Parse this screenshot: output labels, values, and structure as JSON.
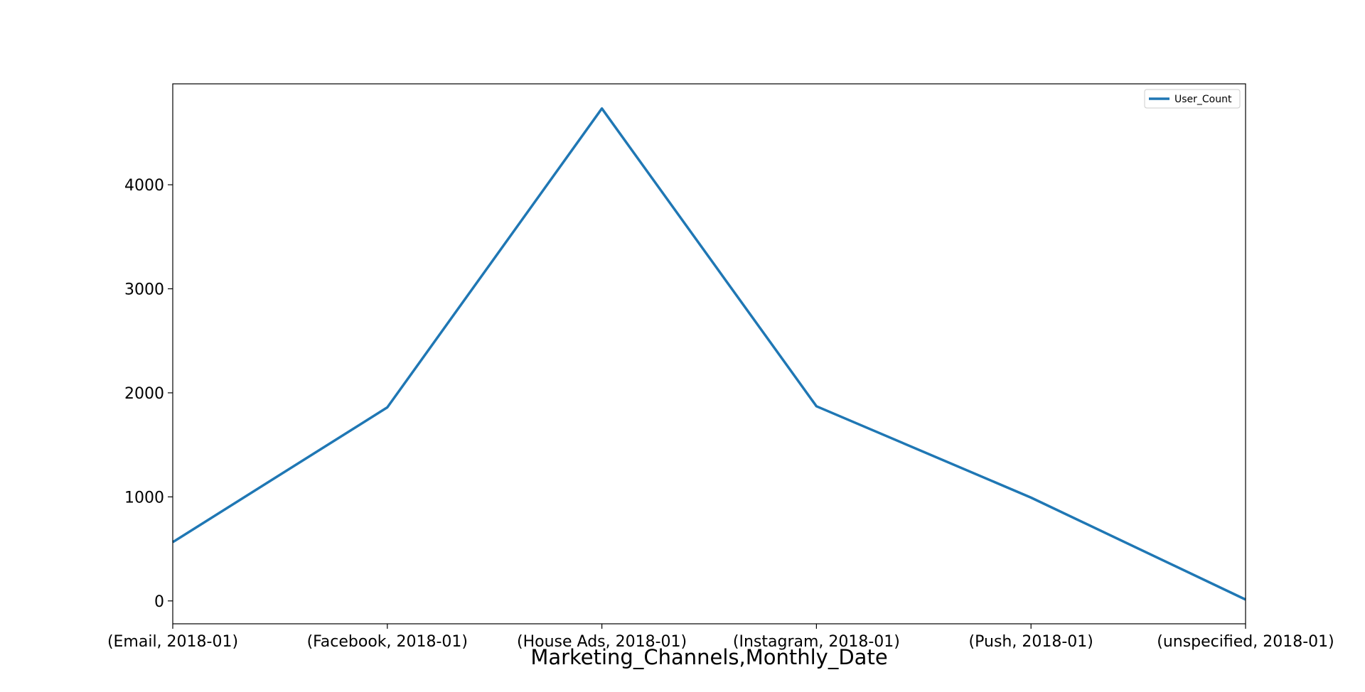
{
  "chart_data": {
    "type": "line",
    "categories": [
      "(Email, 2018-01)",
      "(Facebook, 2018-01)",
      "(House Ads, 2018-01)",
      "(Instagram, 2018-01)",
      "(Push, 2018-01)",
      "(unspecified, 2018-01)"
    ],
    "series": [
      {
        "name": "User_Count",
        "values": [
          565,
          1860,
          4733,
          1871,
          993,
          13
        ],
        "color": "#1f77b4"
      }
    ],
    "xlabel": "Marketing_Channels,Monthly_Date",
    "ylabel": "",
    "ylim": [
      -220,
      4970
    ],
    "yticks": [
      0,
      1000,
      2000,
      3000,
      4000
    ],
    "grid": false,
    "legend": "top-right"
  }
}
